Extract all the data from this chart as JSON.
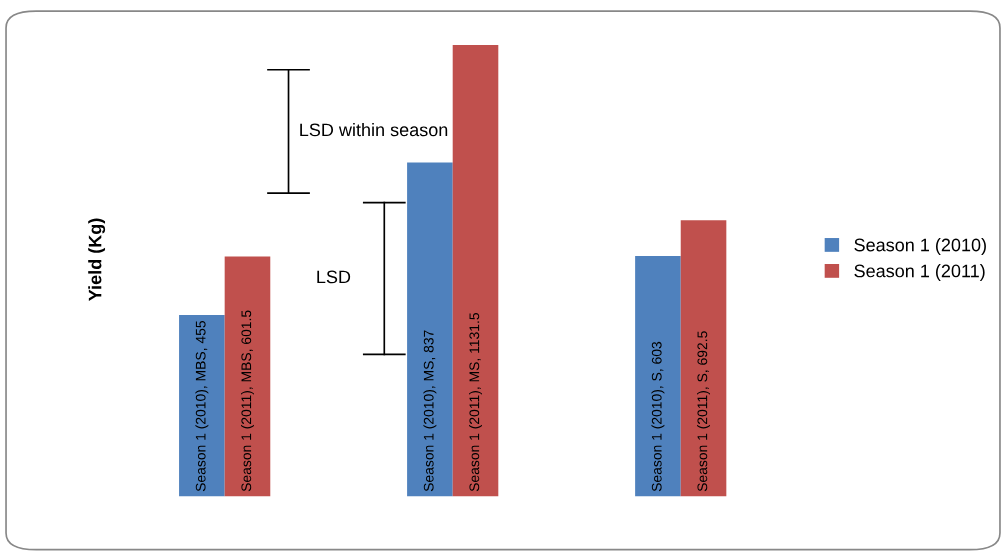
{
  "chart_data": {
    "type": "bar",
    "ylabel": "Yield (Kg)",
    "categories": [
      null,
      null,
      null
    ],
    "series": [
      {
        "name": "Season 1 (2010)",
        "color": "#4f81bd",
        "values": [
          455,
          837,
          603
        ],
        "value_labels": [
          "Season 1 (2010), MBS, 455",
          "Season 1 (2010), MS, 837",
          "Season 1 (2010), S, 603"
        ]
      },
      {
        "name": "Season 1 (2011)",
        "color": "#c0504d",
        "values": [
          601.5,
          1131.5,
          692.5
        ],
        "value_labels": [
          "Season 1 (2011), MBS, 601.5",
          "Season 1 (2011), MS, 1131.5",
          "Season 1 (2011), S, 692.5"
        ]
      }
    ],
    "tick_labels": false,
    "grid": false,
    "legend": "right",
    "annotations": [
      "LSD within season",
      "LSD"
    ]
  }
}
